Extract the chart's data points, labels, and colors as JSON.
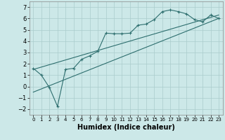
{
  "xlabel": "Humidex (Indice chaleur)",
  "bg_color": "#cce8e8",
  "grid_color": "#aacccc",
  "line_color": "#2d6e6e",
  "xlim": [
    -0.5,
    23.5
  ],
  "ylim": [
    -2.5,
    7.5
  ],
  "yticks": [
    -2,
    -1,
    0,
    1,
    2,
    3,
    4,
    5,
    6,
    7
  ],
  "xticks": [
    0,
    1,
    2,
    3,
    4,
    5,
    6,
    7,
    8,
    9,
    10,
    11,
    12,
    13,
    14,
    15,
    16,
    17,
    18,
    19,
    20,
    21,
    22,
    23
  ],
  "line1_x": [
    0,
    1,
    2,
    3,
    4,
    5,
    6,
    7,
    8,
    9,
    10,
    11,
    12,
    13,
    14,
    15,
    16,
    17,
    18,
    19,
    20,
    21,
    22,
    23
  ],
  "line1_y": [
    1.6,
    1.0,
    -0.1,
    -1.75,
    1.5,
    1.6,
    2.4,
    2.7,
    3.1,
    4.7,
    4.65,
    4.65,
    4.7,
    5.4,
    5.5,
    5.9,
    6.6,
    6.75,
    6.6,
    6.4,
    5.9,
    5.7,
    6.3,
    6.0
  ],
  "line2_x": [
    0,
    23
  ],
  "line2_y": [
    1.5,
    6.3
  ],
  "line3_x": [
    0,
    23
  ],
  "line3_y": [
    -0.5,
    6.0
  ]
}
